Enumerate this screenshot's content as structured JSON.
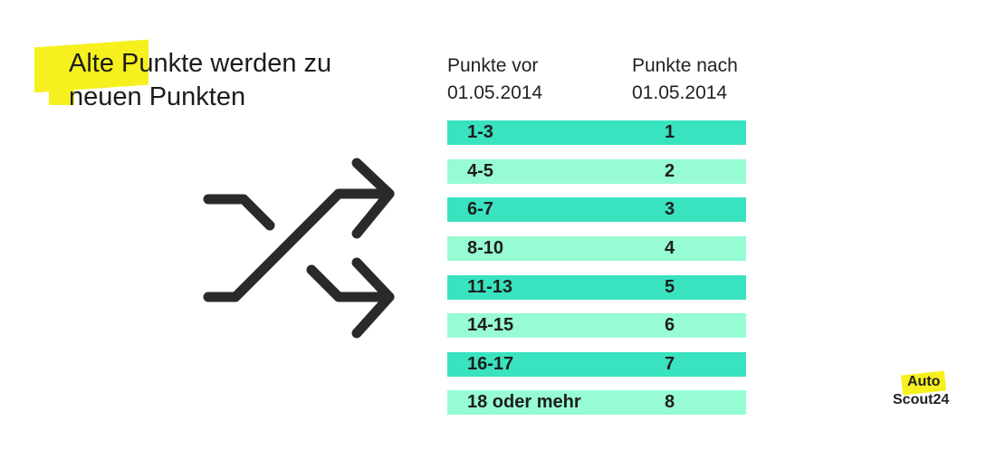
{
  "title": "Alte Punkte werden zu neuen Punkten",
  "columns": {
    "before_line1": "Punkte vor",
    "before_line2": "01.05.2014",
    "after_line1": "Punkte nach",
    "after_line2": "01.05.2014"
  },
  "rows": [
    {
      "before": "1-3",
      "after": "1"
    },
    {
      "before": "4-5",
      "after": "2"
    },
    {
      "before": "6-7",
      "after": "3"
    },
    {
      "before": "8-10",
      "after": "4"
    },
    {
      "before": "11-13",
      "after": "5"
    },
    {
      "before": "14-15",
      "after": "6"
    },
    {
      "before": "16-17",
      "after": "7"
    },
    {
      "before": "18 oder mehr",
      "after": "8"
    }
  ],
  "colors": {
    "row_dark": "#3ae3bf",
    "row_light": "#97fbd4",
    "highlight": "#f6f01e"
  },
  "icons": {
    "shuffle": "shuffle-icon"
  },
  "logo": {
    "line1": "Auto",
    "line2": "Scout24"
  }
}
